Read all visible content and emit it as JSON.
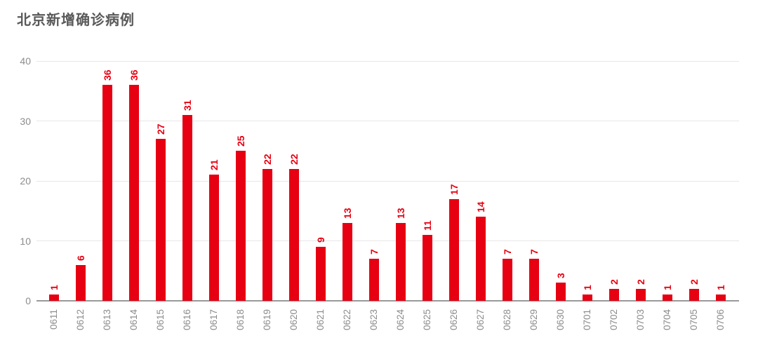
{
  "page": {
    "background_color": "#ffffff",
    "title_color": "#595959"
  },
  "chart_data": {
    "type": "bar",
    "title": "北京新增确诊病例",
    "categories": [
      "0611",
      "0612",
      "0613",
      "0614",
      "0615",
      "0616",
      "0617",
      "0618",
      "0619",
      "0620",
      "0621",
      "0622",
      "0623",
      "0624",
      "0625",
      "0626",
      "0627",
      "0628",
      "0629",
      "0630",
      "0701",
      "0702",
      "0703",
      "0704",
      "0705",
      "0706"
    ],
    "values": [
      1,
      6,
      36,
      36,
      27,
      31,
      21,
      25,
      22,
      22,
      9,
      13,
      7,
      13,
      11,
      17,
      14,
      7,
      7,
      3,
      1,
      2,
      2,
      1,
      2,
      1
    ],
    "xlabel": "",
    "ylabel": "",
    "ylim": [
      0,
      40
    ],
    "yticks": [
      0,
      10,
      20,
      30,
      40
    ],
    "grid": "horizontal",
    "legend": "none",
    "bar_color": "#e60012",
    "value_label_color": "#e60012",
    "value_label_rotation": -90,
    "x_label_rotation": -90,
    "tick_label_color": "#8c8c8c",
    "grid_color": "#e7e7e7",
    "axis_color": "#999999"
  }
}
